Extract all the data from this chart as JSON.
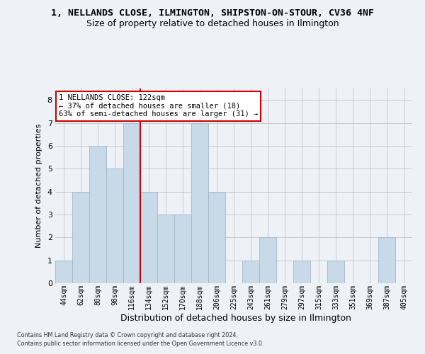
{
  "title": "1, NELLANDS CLOSE, ILMINGTON, SHIPSTON-ON-STOUR, CV36 4NF",
  "subtitle": "Size of property relative to detached houses in Ilmington",
  "xlabel": "Distribution of detached houses by size in Ilmington",
  "ylabel": "Number of detached properties",
  "footer_line1": "Contains HM Land Registry data © Crown copyright and database right 2024.",
  "footer_line2": "Contains public sector information licensed under the Open Government Licence v3.0.",
  "categories": [
    "44sqm",
    "62sqm",
    "80sqm",
    "98sqm",
    "116sqm",
    "134sqm",
    "152sqm",
    "170sqm",
    "188sqm",
    "206sqm",
    "225sqm",
    "243sqm",
    "261sqm",
    "279sqm",
    "297sqm",
    "315sqm",
    "333sqm",
    "351sqm",
    "369sqm",
    "387sqm",
    "405sqm"
  ],
  "values": [
    1,
    4,
    6,
    5,
    7,
    4,
    3,
    3,
    7,
    4,
    0,
    1,
    2,
    0,
    1,
    0,
    1,
    0,
    0,
    2,
    0
  ],
  "bar_color": "#c8d9e8",
  "bar_edge_color": "#a0b8cc",
  "grid_color": "#c8c8c8",
  "vline_index": 4,
  "vline_color": "#cc0000",
  "annotation_line1": "1 NELLANDS CLOSE: 122sqm",
  "annotation_line2": "← 37% of detached houses are smaller (18)",
  "annotation_line3": "63% of semi-detached houses are larger (31) →",
  "annotation_box_color": "#ffffff",
  "annotation_box_edge": "#cc0000",
  "ylim": [
    0,
    8.5
  ],
  "yticks": [
    0,
    1,
    2,
    3,
    4,
    5,
    6,
    7,
    8
  ],
  "bg_color": "#eef2f7",
  "plot_bg_color": "#eef2f7",
  "title_fontsize": 9.5,
  "subtitle_fontsize": 9
}
